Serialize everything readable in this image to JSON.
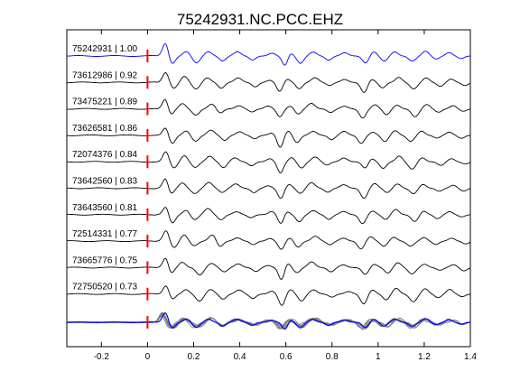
{
  "chart_data": {
    "type": "line",
    "title": "75242931.NC.PCC.EHZ",
    "xlabel": "",
    "ylabel": "",
    "xlim": [
      -0.35,
      1.4
    ],
    "xticks": [
      -0.2,
      0,
      0.2,
      0.4,
      0.6,
      0.8,
      1,
      1.2,
      1.4
    ],
    "xtick_labels": [
      "-0.2",
      "0",
      "0.2",
      "0.4",
      "0.6",
      "0.8",
      "1",
      "1.2",
      "1.4"
    ],
    "grid": false,
    "pick_time": 0,
    "traces": [
      {
        "label": "75242931 | 1.00",
        "event_id": "75242931",
        "correlation": 1.0,
        "color": "#0000ff"
      },
      {
        "label": "73612986 | 0.92",
        "event_id": "73612986",
        "correlation": 0.92,
        "color": "#000000"
      },
      {
        "label": "73475221 | 0.89",
        "event_id": "73475221",
        "correlation": 0.89,
        "color": "#000000"
      },
      {
        "label": "73626581 | 0.86",
        "event_id": "73626581",
        "correlation": 0.86,
        "color": "#000000"
      },
      {
        "label": "72074376 | 0.84",
        "event_id": "72074376",
        "correlation": 0.84,
        "color": "#000000"
      },
      {
        "label": "73642560 | 0.83",
        "event_id": "73642560",
        "correlation": 0.83,
        "color": "#000000"
      },
      {
        "label": "73643560 | 0.81",
        "event_id": "73643560",
        "correlation": 0.81,
        "color": "#000000"
      },
      {
        "label": "72514331 | 0.77",
        "event_id": "72514331",
        "correlation": 0.77,
        "color": "#000000"
      },
      {
        "label": "73665776 | 0.75",
        "event_id": "73665776",
        "correlation": 0.75,
        "color": "#000000"
      },
      {
        "label": "72750520 | 0.73",
        "event_id": "72750520",
        "correlation": 0.73,
        "color": "#000000"
      }
    ],
    "stack": {
      "reference_color": "#0000ff",
      "overlay_color": "#808080"
    },
    "pick_color": "#ff0000"
  }
}
